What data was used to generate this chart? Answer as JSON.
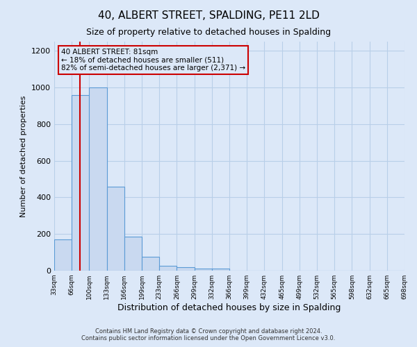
{
  "title": "40, ALBERT STREET, SPALDING, PE11 2LD",
  "subtitle": "Size of property relative to detached houses in Spalding",
  "xlabel": "Distribution of detached houses by size in Spalding",
  "ylabel": "Number of detached properties",
  "bin_labels": [
    "33sqm",
    "66sqm",
    "100sqm",
    "133sqm",
    "166sqm",
    "199sqm",
    "233sqm",
    "266sqm",
    "299sqm",
    "332sqm",
    "366sqm",
    "399sqm",
    "432sqm",
    "465sqm",
    "499sqm",
    "532sqm",
    "565sqm",
    "598sqm",
    "632sqm",
    "665sqm",
    "698sqm"
  ],
  "bar_values": [
    170,
    960,
    1000,
    460,
    185,
    75,
    25,
    20,
    10,
    10,
    0,
    0,
    0,
    0,
    0,
    0,
    0,
    0,
    0,
    0
  ],
  "bar_color": "#c9d9f0",
  "bar_edge_color": "#5b9bd5",
  "red_line_color": "#cc0000",
  "annotation_title": "40 ALBERT STREET: 81sqm",
  "annotation_line1": "← 18% of detached houses are smaller (511)",
  "annotation_line2": "82% of semi-detached houses are larger (2,371) →",
  "annotation_box_edge": "#cc0000",
  "ylim": [
    0,
    1250
  ],
  "yticks": [
    0,
    200,
    400,
    600,
    800,
    1000,
    1200
  ],
  "footer1": "Contains HM Land Registry data © Crown copyright and database right 2024.",
  "footer2": "Contains public sector information licensed under the Open Government Licence v3.0.",
  "bg_color": "#dce8f8",
  "plot_bg_color": "#dce8f8",
  "grid_color": "#b8cfe8"
}
